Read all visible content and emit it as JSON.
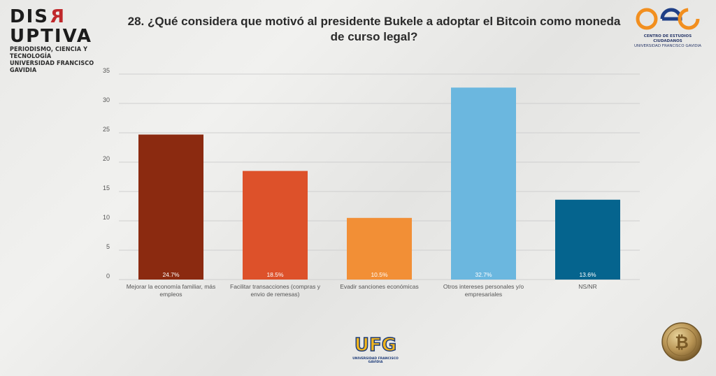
{
  "header": {
    "brand": "DISЯUPTIVA",
    "brand_line1": "PERIODISMO, CIENCIA Y TECNOLOGÍA",
    "brand_line2": "UNIVERSIDAD FRANCISCO GAVIDIA",
    "title": "28. ¿Qué considera que motivó al presidente Bukele a adoptar el Bitcoin como moneda de curso legal?",
    "right_logo_line1": "CENTRO DE ESTUDIOS CIUDADANOS",
    "right_logo_line2": "UNIVERSIDAD FRANCISCO GAVIDIA"
  },
  "footer": {
    "ufg_text": "UFG",
    "ufg_sub": "UNIVERSIDAD FRANCISCO GAVIDIA"
  },
  "colors": {
    "bar1": "#8b2a10",
    "bar2": "#dd512a",
    "bar3": "#f28f36",
    "bar4": "#6bb7df",
    "bar5": "#05648e"
  },
  "chart_data": {
    "type": "bar",
    "categories": [
      "Mejorar la economía familiar, más empleos",
      "Facilitar transacciones (compras y envio de remesas)",
      "Evadir sanciones económicas",
      "Otros intereses personales y/o empresariales",
      "NS/NR"
    ],
    "values": [
      24.7,
      18.5,
      10.5,
      32.7,
      13.6
    ],
    "data_labels": [
      "24.7%",
      "18.5%",
      "10.5%",
      "32.7%",
      "13.6%"
    ],
    "yticks": [
      "0",
      "5",
      "10",
      "15",
      "20",
      "25",
      "30",
      "35"
    ],
    "ylim": [
      0,
      35
    ],
    "grid": true
  }
}
